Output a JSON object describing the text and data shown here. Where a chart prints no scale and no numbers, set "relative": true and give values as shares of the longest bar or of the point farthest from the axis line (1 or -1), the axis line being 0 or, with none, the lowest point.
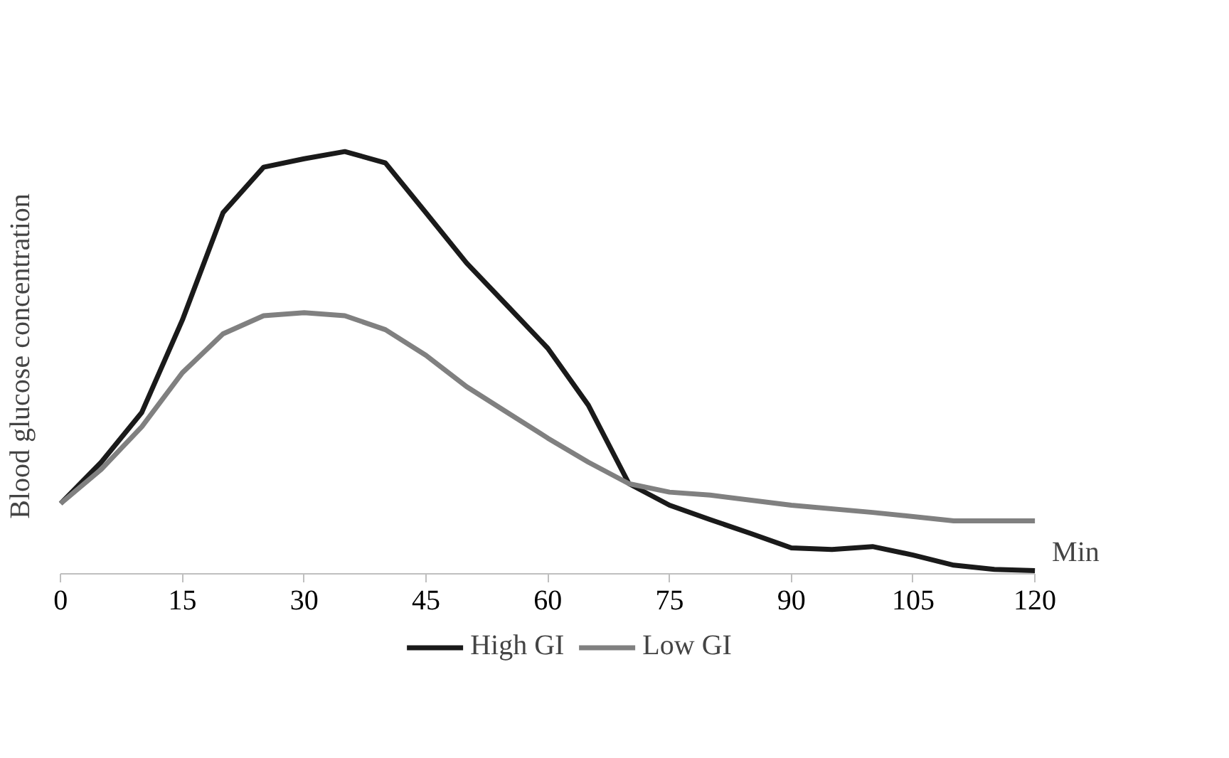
{
  "chart_data": {
    "type": "line",
    "relative": true,
    "xlabel": "Min",
    "ylabel": "Blood glucose concentration",
    "xlim": [
      0,
      120
    ],
    "xticks": [
      0,
      15,
      30,
      45,
      60,
      75,
      90,
      105,
      120
    ],
    "grid": false,
    "legend": "bottom",
    "marker": "none",
    "line_style": "solid",
    "series": [
      {
        "name": "High GI",
        "color": "#1a1a1a",
        "x": [
          0,
          5,
          10,
          15,
          20,
          25,
          30,
          35,
          40,
          45,
          50,
          55,
          60,
          65,
          70,
          75,
          80,
          85,
          90,
          95,
          100,
          105,
          110,
          115,
          120
        ],
        "values": [
          0.166,
          0.264,
          0.382,
          0.601,
          0.855,
          0.963,
          0.983,
          1,
          0.973,
          0.855,
          0.736,
          0.635,
          0.534,
          0.399,
          0.213,
          0.162,
          0.128,
          0.095,
          0.061,
          0.057,
          0.064,
          0.044,
          0.02,
          0.01,
          0.007
        ]
      },
      {
        "name": "Low GI",
        "color": "#808080",
        "x": [
          0,
          5,
          10,
          15,
          20,
          25,
          30,
          35,
          40,
          45,
          50,
          55,
          60,
          65,
          70,
          75,
          80,
          90,
          100,
          110,
          120
        ],
        "values": [
          0.166,
          0.247,
          0.348,
          0.476,
          0.568,
          0.611,
          0.618,
          0.611,
          0.578,
          0.517,
          0.443,
          0.382,
          0.321,
          0.264,
          0.213,
          0.193,
          0.186,
          0.162,
          0.145,
          0.125,
          0.125
        ]
      }
    ]
  }
}
